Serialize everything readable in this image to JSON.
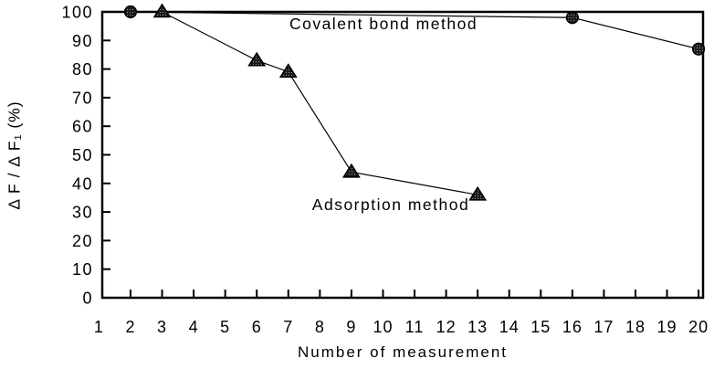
{
  "chart_data": {
    "type": "line",
    "title": "",
    "xlabel": "Number of measurement",
    "ylabel": "Δ F / Δ F₁  (%)",
    "xlim": [
      1,
      20
    ],
    "ylim": [
      0,
      100
    ],
    "x_ticks": [
      1,
      2,
      3,
      4,
      5,
      6,
      7,
      8,
      9,
      10,
      11,
      12,
      13,
      14,
      15,
      16,
      17,
      18,
      19,
      20
    ],
    "y_ticks": [
      0,
      10,
      20,
      30,
      40,
      50,
      60,
      70,
      80,
      90,
      100
    ],
    "grid": false,
    "legend_position": "none",
    "series": [
      {
        "name": "Covalent bond method",
        "marker": "circle",
        "x": [
          2,
          16,
          20
        ],
        "y": [
          100,
          98,
          87
        ]
      },
      {
        "name": "Adsorption method",
        "marker": "triangle",
        "x": [
          3,
          6,
          7,
          9,
          13
        ],
        "y": [
          100,
          83,
          79,
          44,
          36
        ]
      }
    ],
    "annotations": [
      {
        "text": "Covalent bond method"
      },
      {
        "text": "Adsorption method"
      }
    ],
    "colors": {
      "stroke": "#000000",
      "marker_fill": "#1c1c1c",
      "marker_speckle": "#9a9a9a",
      "text": "#000000",
      "background": "#ffffff"
    }
  }
}
